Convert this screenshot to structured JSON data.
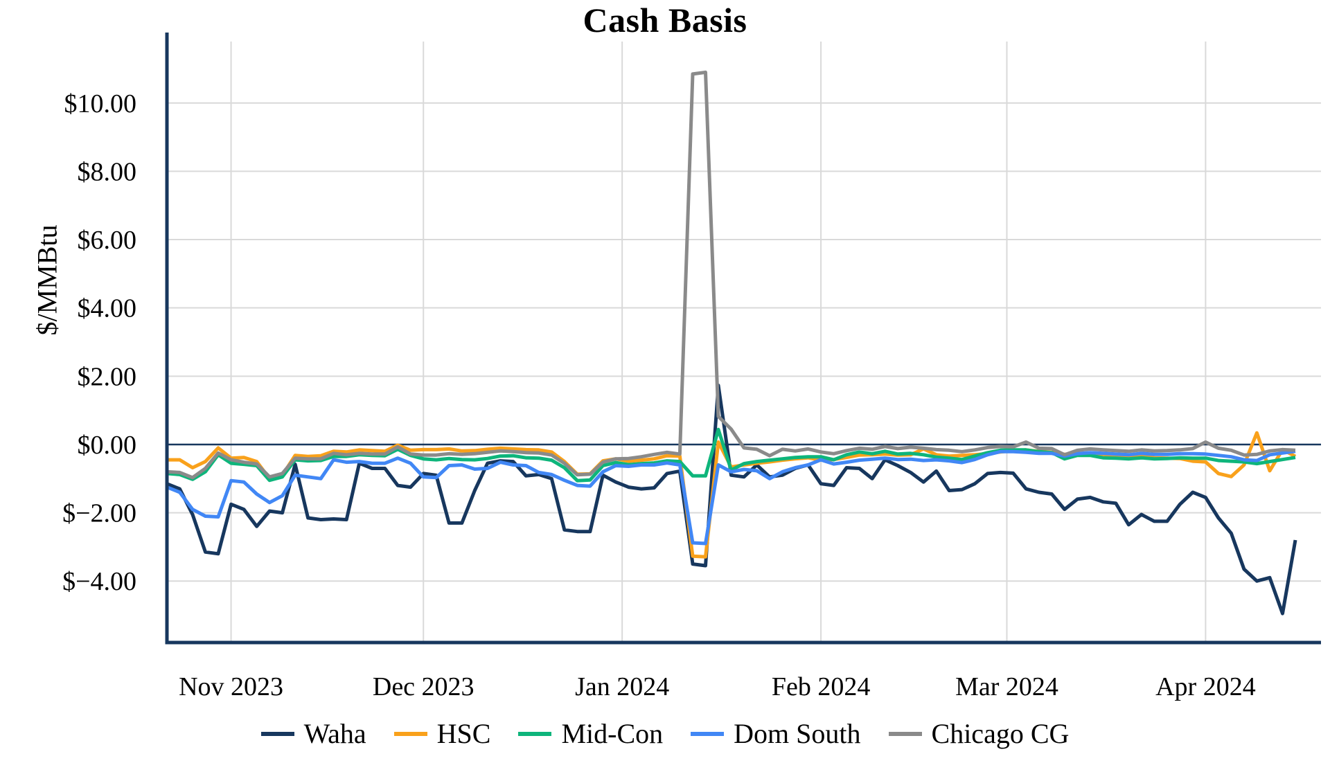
{
  "chart_data": {
    "type": "line",
    "title": "Cash Basis",
    "ylabel": "$/MMBtu",
    "x_unit": "days since 2023-10-22 (daily cash basis points)",
    "x_domain": [
      0,
      180
    ],
    "y_domain": [
      -5.8,
      11.8
    ],
    "grid": true,
    "grid_color": "#D9D9D9",
    "axis_color": "#17375E",
    "legend_position": "bottom",
    "x_ticks": [
      {
        "t": 10,
        "label": "Nov 2023"
      },
      {
        "t": 40,
        "label": "Dec 2023"
      },
      {
        "t": 71,
        "label": "Jan 2024"
      },
      {
        "t": 102,
        "label": "Feb 2024"
      },
      {
        "t": 131,
        "label": "Mar 2024"
      },
      {
        "t": 162,
        "label": "Apr 2024"
      }
    ],
    "y_ticks": [
      {
        "v": 10,
        "label": "$10.00"
      },
      {
        "v": 8,
        "label": "$8.00"
      },
      {
        "v": 6,
        "label": "$6.00"
      },
      {
        "v": 4,
        "label": "$4.00"
      },
      {
        "v": 2,
        "label": "$2.00"
      },
      {
        "v": 0,
        "label": "$0.00"
      },
      {
        "v": -2,
        "label": "$−2.00"
      },
      {
        "v": -4,
        "label": "$−4.00"
      }
    ],
    "zero_line": 0,
    "t": [
      0,
      2,
      4,
      6,
      8,
      10,
      12,
      14,
      16,
      18,
      20,
      22,
      24,
      26,
      28,
      30,
      32,
      34,
      36,
      38,
      40,
      42,
      44,
      46,
      48,
      50,
      52,
      54,
      56,
      58,
      60,
      62,
      64,
      66,
      68,
      70,
      72,
      74,
      76,
      78,
      80,
      82,
      84,
      86,
      88,
      90,
      92,
      94,
      96,
      98,
      100,
      102,
      104,
      106,
      108,
      110,
      112,
      114,
      116,
      118,
      120,
      122,
      124,
      126,
      128,
      130,
      132,
      134,
      136,
      138,
      140,
      142,
      144,
      146,
      148,
      150,
      152,
      154,
      156,
      158,
      160,
      162,
      164,
      166,
      168,
      170,
      172,
      174,
      176
    ],
    "series": [
      {
        "name": "Waha",
        "color": "#17375E",
        "values": [
          -1.15,
          -1.3,
          -2.05,
          -3.15,
          -3.2,
          -1.75,
          -1.9,
          -2.4,
          -1.95,
          -2.0,
          -0.58,
          -2.15,
          -2.2,
          -2.18,
          -2.2,
          -0.55,
          -0.7,
          -0.7,
          -1.2,
          -1.25,
          -0.85,
          -0.9,
          -2.3,
          -2.3,
          -1.35,
          -0.55,
          -0.48,
          -0.5,
          -0.92,
          -0.88,
          -1.0,
          -2.5,
          -2.55,
          -2.55,
          -0.9,
          -1.1,
          -1.25,
          -1.3,
          -1.27,
          -0.85,
          -0.78,
          -3.5,
          -3.55,
          1.73,
          -0.9,
          -0.95,
          -0.6,
          -0.95,
          -0.9,
          -0.7,
          -0.6,
          -1.15,
          -1.2,
          -0.68,
          -0.7,
          -1.0,
          -0.45,
          -0.62,
          -0.82,
          -1.1,
          -0.78,
          -1.35,
          -1.32,
          -1.15,
          -0.85,
          -0.82,
          -0.84,
          -1.3,
          -1.4,
          -1.45,
          -1.9,
          -1.6,
          -1.55,
          -1.68,
          -1.72,
          -2.35,
          -2.05,
          -2.25,
          -2.25,
          -1.75,
          -1.4,
          -1.55,
          -2.15,
          -2.6,
          -3.65,
          -4.0,
          -3.9,
          -4.95,
          -2.8
        ]
      },
      {
        "name": "HSC",
        "color": "#F9A11B",
        "values": [
          -0.45,
          -0.45,
          -0.68,
          -0.5,
          -0.1,
          -0.4,
          -0.38,
          -0.5,
          -1.0,
          -0.9,
          -0.32,
          -0.35,
          -0.33,
          -0.2,
          -0.22,
          -0.16,
          -0.18,
          -0.2,
          -0.02,
          -0.17,
          -0.15,
          -0.15,
          -0.13,
          -0.19,
          -0.18,
          -0.14,
          -0.11,
          -0.13,
          -0.15,
          -0.16,
          -0.22,
          -0.5,
          -0.87,
          -0.86,
          -0.48,
          -0.42,
          -0.49,
          -0.46,
          -0.42,
          -0.33,
          -0.34,
          -3.27,
          -3.29,
          0.07,
          -0.66,
          -0.6,
          -0.55,
          -0.51,
          -0.46,
          -0.42,
          -0.39,
          -0.46,
          -0.44,
          -0.38,
          -0.31,
          -0.3,
          -0.28,
          -0.31,
          -0.3,
          -0.13,
          -0.3,
          -0.34,
          -0.32,
          -0.3,
          -0.27,
          -0.22,
          -0.18,
          -0.16,
          -0.2,
          -0.23,
          -0.29,
          -0.26,
          -0.26,
          -0.29,
          -0.33,
          -0.34,
          -0.32,
          -0.39,
          -0.4,
          -0.41,
          -0.49,
          -0.51,
          -0.85,
          -0.94,
          -0.6,
          0.34,
          -0.77,
          -0.15,
          -0.35
        ]
      },
      {
        "name": "Mid-Con",
        "color": "#0EB57B",
        "values": [
          -0.85,
          -0.88,
          -1.02,
          -0.8,
          -0.3,
          -0.55,
          -0.58,
          -0.62,
          -1.05,
          -0.95,
          -0.45,
          -0.48,
          -0.47,
          -0.35,
          -0.35,
          -0.3,
          -0.32,
          -0.33,
          -0.14,
          -0.32,
          -0.42,
          -0.45,
          -0.41,
          -0.44,
          -0.45,
          -0.41,
          -0.34,
          -0.33,
          -0.39,
          -0.4,
          -0.46,
          -0.68,
          -1.06,
          -1.04,
          -0.62,
          -0.53,
          -0.59,
          -0.56,
          -0.54,
          -0.48,
          -0.5,
          -0.92,
          -0.92,
          0.44,
          -0.75,
          -0.56,
          -0.5,
          -0.46,
          -0.42,
          -0.38,
          -0.36,
          -0.36,
          -0.45,
          -0.3,
          -0.22,
          -0.27,
          -0.2,
          -0.28,
          -0.26,
          -0.3,
          -0.37,
          -0.4,
          -0.44,
          -0.34,
          -0.24,
          -0.17,
          -0.16,
          -0.16,
          -0.21,
          -0.24,
          -0.42,
          -0.32,
          -0.32,
          -0.39,
          -0.4,
          -0.42,
          -0.39,
          -0.42,
          -0.41,
          -0.39,
          -0.4,
          -0.4,
          -0.47,
          -0.49,
          -0.51,
          -0.56,
          -0.5,
          -0.44,
          -0.38
        ]
      },
      {
        "name": "Dom South",
        "color": "#4187F5",
        "values": [
          -1.25,
          -1.4,
          -1.9,
          -2.1,
          -2.12,
          -1.06,
          -1.1,
          -1.45,
          -1.7,
          -1.5,
          -0.9,
          -0.95,
          -1.0,
          -0.45,
          -0.52,
          -0.5,
          -0.55,
          -0.55,
          -0.4,
          -0.55,
          -0.95,
          -0.97,
          -0.62,
          -0.6,
          -0.72,
          -0.7,
          -0.52,
          -0.6,
          -0.62,
          -0.82,
          -0.88,
          -1.05,
          -1.2,
          -1.22,
          -0.8,
          -0.62,
          -0.64,
          -0.6,
          -0.6,
          -0.54,
          -0.6,
          -2.88,
          -2.9,
          -0.6,
          -0.8,
          -0.73,
          -0.77,
          -1.0,
          -0.8,
          -0.68,
          -0.6,
          -0.45,
          -0.57,
          -0.52,
          -0.46,
          -0.43,
          -0.4,
          -0.44,
          -0.43,
          -0.47,
          -0.45,
          -0.48,
          -0.53,
          -0.44,
          -0.3,
          -0.21,
          -0.21,
          -0.23,
          -0.26,
          -0.26,
          -0.34,
          -0.27,
          -0.24,
          -0.26,
          -0.28,
          -0.3,
          -0.26,
          -0.29,
          -0.29,
          -0.27,
          -0.27,
          -0.28,
          -0.32,
          -0.36,
          -0.45,
          -0.47,
          -0.3,
          -0.25,
          -0.2
        ]
      },
      {
        "name": "Chicago CG",
        "color": "#8A8A8A",
        "values": [
          -0.8,
          -0.82,
          -0.97,
          -0.7,
          -0.25,
          -0.45,
          -0.52,
          -0.57,
          -0.95,
          -0.85,
          -0.4,
          -0.42,
          -0.42,
          -0.26,
          -0.3,
          -0.26,
          -0.28,
          -0.28,
          -0.07,
          -0.28,
          -0.31,
          -0.31,
          -0.27,
          -0.29,
          -0.27,
          -0.23,
          -0.19,
          -0.21,
          -0.24,
          -0.25,
          -0.31,
          -0.55,
          -0.89,
          -0.87,
          -0.52,
          -0.42,
          -0.41,
          -0.36,
          -0.29,
          -0.23,
          -0.28,
          10.85,
          10.9,
          0.82,
          0.45,
          -0.1,
          -0.14,
          -0.33,
          -0.14,
          -0.19,
          -0.13,
          -0.22,
          -0.27,
          -0.18,
          -0.11,
          -0.14,
          -0.06,
          -0.12,
          -0.08,
          -0.11,
          -0.15,
          -0.17,
          -0.21,
          -0.16,
          -0.09,
          -0.06,
          -0.07,
          0.07,
          -0.11,
          -0.12,
          -0.3,
          -0.17,
          -0.13,
          -0.16,
          -0.18,
          -0.2,
          -0.16,
          -0.19,
          -0.18,
          -0.16,
          -0.12,
          0.07,
          -0.11,
          -0.17,
          -0.31,
          -0.29,
          -0.19,
          -0.15,
          -0.17
        ]
      }
    ]
  }
}
